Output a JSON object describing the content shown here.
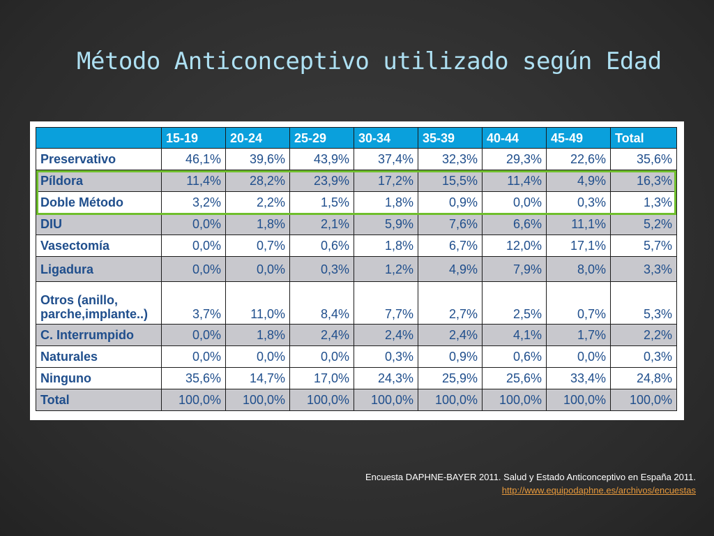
{
  "title": "Método Anticonceptivo utilizado según Edad",
  "table": {
    "headers": [
      "",
      "15-19",
      "20-24",
      "25-29",
      "30-34",
      "35-39",
      "40-44",
      "45-49",
      "Total"
    ],
    "rows": [
      {
        "label": "Preservativo",
        "values": [
          "46,1%",
          "39,6%",
          "43,9%",
          "37,4%",
          "32,3%",
          "29,3%",
          "22,6%",
          "35,6%"
        ]
      },
      {
        "label": "Píldora",
        "values": [
          "11,4%",
          "28,2%",
          "23,9%",
          "17,2%",
          "15,5%",
          "11,4%",
          "4,9%",
          "16,3%"
        ]
      },
      {
        "label": "Doble Método",
        "values": [
          "3,2%",
          "2,2%",
          "1,5%",
          "1,8%",
          "0,9%",
          "0,0%",
          "0,3%",
          "1,3%"
        ]
      },
      {
        "label": "DIU",
        "values": [
          "0,0%",
          "1,8%",
          "2,1%",
          "5,9%",
          "7,6%",
          "6,6%",
          "11,1%",
          "5,2%"
        ]
      },
      {
        "label": "Vasectomía",
        "values": [
          "0,0%",
          "0,7%",
          "0,6%",
          "1,8%",
          "6,7%",
          "12,0%",
          "17,1%",
          "5,7%"
        ]
      },
      {
        "label": "Ligadura",
        "values": [
          "0,0%",
          "0,0%",
          "0,3%",
          "1,2%",
          "4,9%",
          "7,9%",
          "8,0%",
          "3,3%"
        ]
      },
      {
        "label_line1": "Otros (anillo,",
        "label_line2": "parche,implante..)",
        "values": [
          "3,7%",
          "11,0%",
          "8,4%",
          "7,7%",
          "2,7%",
          "2,5%",
          "0,7%",
          "5,3%"
        ]
      },
      {
        "label": "C. Interrumpido",
        "values": [
          "0,0%",
          "1,8%",
          "2,4%",
          "2,4%",
          "2,4%",
          "4,1%",
          "1,7%",
          "2,2%"
        ]
      },
      {
        "label": "Naturales",
        "values": [
          "0,0%",
          "0,0%",
          "0,0%",
          "0,3%",
          "0,9%",
          "0,6%",
          "0,0%",
          "0,3%"
        ]
      },
      {
        "label": "Ninguno",
        "values": [
          "35,6%",
          "14,7%",
          "17,0%",
          "24,3%",
          "25,9%",
          "25,6%",
          "33,4%",
          "24,8%"
        ]
      },
      {
        "label": "Total",
        "values": [
          "100,0%",
          "100,0%",
          "100,0%",
          "100,0%",
          "100,0%",
          "100,0%",
          "100,0%",
          "100,0%"
        ]
      }
    ]
  },
  "source": {
    "citation": "Encuesta DAPHNE-BAYER 2011. Salud y Estado Anticonceptivo en España 2011.",
    "link": "http://www.equipodaphne.es/archivos/encuestas"
  },
  "colors": {
    "header_bg": "#0aa0dc",
    "cell_text": "#1f4e8c",
    "shaded_row": "#c8c8cd",
    "highlight_border": "#6fbe2c",
    "title": "#aee0f2",
    "link": "#e89a3c"
  }
}
